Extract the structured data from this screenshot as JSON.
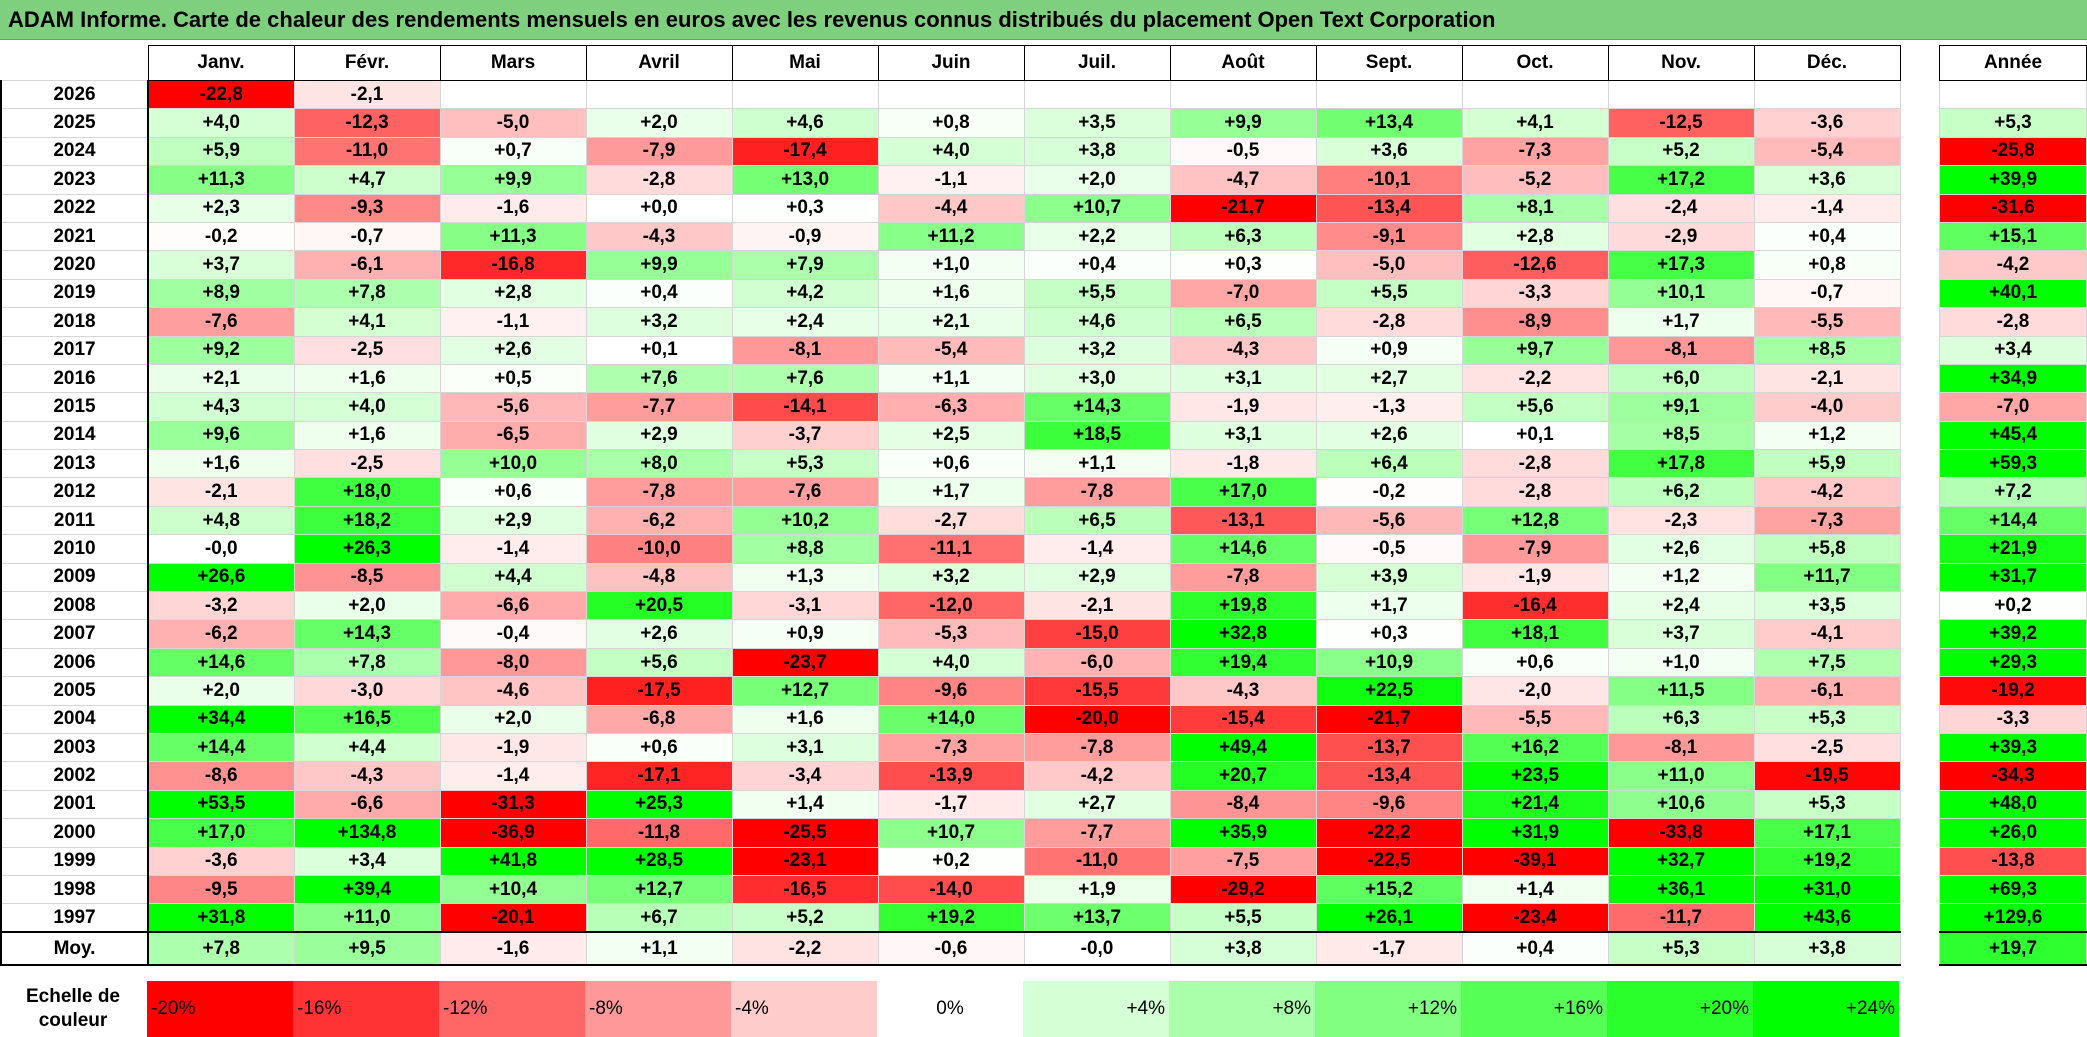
{
  "title": "ADAM Informe. Carte de chaleur des rendements mensuels en euros avec les revenus connus distribués du placement Open Text Corporation",
  "months": [
    "Janv.",
    "Févr.",
    "Mars",
    "Avril",
    "Mai",
    "Juin",
    "Juil.",
    "Août",
    "Sept.",
    "Oct.",
    "Nov.",
    "Déc."
  ],
  "year_header": "Année",
  "avg_label": "Moy.",
  "scale_label": "Echelle de couleur",
  "colors": {
    "title_bg": "#7ed07e",
    "negative_max": "#ff0000",
    "positive_max": "#00ff00",
    "neutral": "#ffffff"
  },
  "chart_data": {
    "type": "heatmap",
    "title": "ADAM Informe. Carte de chaleur des rendements mensuels en euros avec les revenus connus distribués du placement Open Text Corporation",
    "columns": [
      "Janv.",
      "Févr.",
      "Mars",
      "Avril",
      "Mai",
      "Juin",
      "Juil.",
      "Août",
      "Sept.",
      "Oct.",
      "Nov.",
      "Déc.",
      "Année"
    ],
    "rows": [
      {
        "year": "2026",
        "values": [
          "-22,8",
          "-2,1",
          "",
          "",
          "",
          "",
          "",
          "",
          "",
          "",
          "",
          "",
          ""
        ]
      },
      {
        "year": "2025",
        "values": [
          "+4,0",
          "-12,3",
          "-5,0",
          "+2,0",
          "+4,6",
          "+0,8",
          "+3,5",
          "+9,9",
          "+13,4",
          "+4,1",
          "-12,5",
          "-3,6",
          "+5,3"
        ]
      },
      {
        "year": "2024",
        "values": [
          "+5,9",
          "-11,0",
          "+0,7",
          "-7,9",
          "-17,4",
          "+4,0",
          "+3,8",
          "-0,5",
          "+3,6",
          "-7,3",
          "+5,2",
          "-5,4",
          "-25,8"
        ]
      },
      {
        "year": "2023",
        "values": [
          "+11,3",
          "+4,7",
          "+9,9",
          "-2,8",
          "+13,0",
          "-1,1",
          "+2,0",
          "-4,7",
          "-10,1",
          "-5,2",
          "+17,2",
          "+3,6",
          "+39,9"
        ]
      },
      {
        "year": "2022",
        "values": [
          "+2,3",
          "-9,3",
          "-1,6",
          "+0,0",
          "+0,3",
          "-4,4",
          "+10,7",
          "-21,7",
          "-13,4",
          "+8,1",
          "-2,4",
          "-1,4",
          "-31,6"
        ]
      },
      {
        "year": "2021",
        "values": [
          "-0,2",
          "-0,7",
          "+11,3",
          "-4,3",
          "-0,9",
          "+11,2",
          "+2,2",
          "+6,3",
          "-9,1",
          "+2,8",
          "-2,9",
          "+0,4",
          "+15,1"
        ]
      },
      {
        "year": "2020",
        "values": [
          "+3,7",
          "-6,1",
          "-16,8",
          "+9,9",
          "+7,9",
          "+1,0",
          "+0,4",
          "+0,3",
          "-5,0",
          "-12,6",
          "+17,3",
          "+0,8",
          "-4,2"
        ]
      },
      {
        "year": "2019",
        "values": [
          "+8,9",
          "+7,8",
          "+2,8",
          "+0,4",
          "+4,2",
          "+1,6",
          "+5,5",
          "-7,0",
          "+5,5",
          "-3,3",
          "+10,1",
          "-0,7",
          "+40,1"
        ]
      },
      {
        "year": "2018",
        "values": [
          "-7,6",
          "+4,1",
          "-1,1",
          "+3,2",
          "+2,4",
          "+2,1",
          "+4,6",
          "+6,5",
          "-2,8",
          "-8,9",
          "+1,7",
          "-5,5",
          "-2,8"
        ]
      },
      {
        "year": "2017",
        "values": [
          "+9,2",
          "-2,5",
          "+2,6",
          "+0,1",
          "-8,1",
          "-5,4",
          "+3,2",
          "-4,3",
          "+0,9",
          "+9,7",
          "-8,1",
          "+8,5",
          "+3,4"
        ]
      },
      {
        "year": "2016",
        "values": [
          "+2,1",
          "+1,6",
          "+0,5",
          "+7,6",
          "+7,6",
          "+1,1",
          "+3,0",
          "+3,1",
          "+2,7",
          "-2,2",
          "+6,0",
          "-2,1",
          "+34,9"
        ]
      },
      {
        "year": "2015",
        "values": [
          "+4,3",
          "+4,0",
          "-5,6",
          "-7,7",
          "-14,1",
          "-6,3",
          "+14,3",
          "-1,9",
          "-1,3",
          "+5,6",
          "+9,1",
          "-4,0",
          "-7,0"
        ]
      },
      {
        "year": "2014",
        "values": [
          "+9,6",
          "+1,6",
          "-6,5",
          "+2,9",
          "-3,7",
          "+2,5",
          "+18,5",
          "+3,1",
          "+2,6",
          "+0,1",
          "+8,5",
          "+1,2",
          "+45,4"
        ]
      },
      {
        "year": "2013",
        "values": [
          "+1,6",
          "-2,5",
          "+10,0",
          "+8,0",
          "+5,3",
          "+0,6",
          "+1,1",
          "-1,8",
          "+6,4",
          "-2,8",
          "+17,8",
          "+5,9",
          "+59,3"
        ]
      },
      {
        "year": "2012",
        "values": [
          "-2,1",
          "+18,0",
          "+0,6",
          "-7,8",
          "-7,6",
          "+1,7",
          "-7,8",
          "+17,0",
          "-0,2",
          "-2,8",
          "+6,2",
          "-4,2",
          "+7,2"
        ]
      },
      {
        "year": "2011",
        "values": [
          "+4,8",
          "+18,2",
          "+2,9",
          "-6,2",
          "+10,2",
          "-2,7",
          "+6,5",
          "-13,1",
          "-5,6",
          "+12,8",
          "-2,3",
          "-7,3",
          "+14,4"
        ]
      },
      {
        "year": "2010",
        "values": [
          "-0,0",
          "+26,3",
          "-1,4",
          "-10,0",
          "+8,8",
          "-11,1",
          "-1,4",
          "+14,6",
          "-0,5",
          "-7,9",
          "+2,6",
          "+5,8",
          "+21,9"
        ]
      },
      {
        "year": "2009",
        "values": [
          "+26,6",
          "-8,5",
          "+4,4",
          "-4,8",
          "+1,3",
          "+3,2",
          "+2,9",
          "-7,8",
          "+3,9",
          "-1,9",
          "+1,2",
          "+11,7",
          "+31,7"
        ]
      },
      {
        "year": "2008",
        "values": [
          "-3,2",
          "+2,0",
          "-6,6",
          "+20,5",
          "-3,1",
          "-12,0",
          "-2,1",
          "+19,8",
          "+1,7",
          "-16,4",
          "+2,4",
          "+3,5",
          "+0,2"
        ]
      },
      {
        "year": "2007",
        "values": [
          "-6,2",
          "+14,3",
          "-0,4",
          "+2,6",
          "+0,9",
          "-5,3",
          "-15,0",
          "+32,8",
          "+0,3",
          "+18,1",
          "+3,7",
          "-4,1",
          "+39,2"
        ]
      },
      {
        "year": "2006",
        "values": [
          "+14,6",
          "+7,8",
          "-8,0",
          "+5,6",
          "-23,7",
          "+4,0",
          "-6,0",
          "+19,4",
          "+10,9",
          "+0,6",
          "+1,0",
          "+7,5",
          "+29,3"
        ]
      },
      {
        "year": "2005",
        "values": [
          "+2,0",
          "-3,0",
          "-4,6",
          "-17,5",
          "+12,7",
          "-9,6",
          "-15,5",
          "-4,3",
          "+22,5",
          "-2,0",
          "+11,5",
          "-6,1",
          "-19,2"
        ]
      },
      {
        "year": "2004",
        "values": [
          "+34,4",
          "+16,5",
          "+2,0",
          "-6,8",
          "+1,6",
          "+14,0",
          "-20,0",
          "-15,4",
          "-21,7",
          "-5,5",
          "+6,3",
          "+5,3",
          "-3,3"
        ]
      },
      {
        "year": "2003",
        "values": [
          "+14,4",
          "+4,4",
          "-1,9",
          "+0,6",
          "+3,1",
          "-7,3",
          "-7,8",
          "+49,4",
          "-13,7",
          "+16,2",
          "-8,1",
          "-2,5",
          "+39,3"
        ]
      },
      {
        "year": "2002",
        "values": [
          "-8,6",
          "-4,3",
          "-1,4",
          "-17,1",
          "-3,4",
          "-13,9",
          "-4,2",
          "+20,7",
          "-13,4",
          "+23,5",
          "+11,0",
          "-19,5",
          "-34,3"
        ]
      },
      {
        "year": "2001",
        "values": [
          "+53,5",
          "-6,6",
          "-31,3",
          "+25,3",
          "+1,4",
          "-1,7",
          "+2,7",
          "-8,4",
          "-9,6",
          "+21,4",
          "+10,6",
          "+5,3",
          "+48,0"
        ]
      },
      {
        "year": "2000",
        "values": [
          "+17,0",
          "+134,8",
          "-36,9",
          "-11,8",
          "-25,5",
          "+10,7",
          "-7,7",
          "+35,9",
          "-22,2",
          "+31,9",
          "-33,8",
          "+17,1",
          "+26,0"
        ]
      },
      {
        "year": "1999",
        "values": [
          "-3,6",
          "+3,4",
          "+41,8",
          "+28,5",
          "-23,1",
          "+0,2",
          "-11,0",
          "-7,5",
          "-22,5",
          "-39,1",
          "+32,7",
          "+19,2",
          "-13,8"
        ]
      },
      {
        "year": "1998",
        "values": [
          "-9,5",
          "+39,4",
          "+10,4",
          "+12,7",
          "-16,5",
          "-14,0",
          "+1,9",
          "-29,2",
          "+15,2",
          "+1,4",
          "+36,1",
          "+31,0",
          "+69,3"
        ]
      },
      {
        "year": "1997",
        "values": [
          "+31,8",
          "+11,0",
          "-20,1",
          "+6,7",
          "+5,2",
          "+19,2",
          "+13,7",
          "+5,5",
          "+26,1",
          "-23,4",
          "-11,7",
          "+43,6",
          "+129,6"
        ]
      }
    ],
    "average": [
      "+7,8",
      "+9,5",
      "-1,6",
      "+1,1",
      "-2,2",
      "-0,6",
      "-0,0",
      "+3,8",
      "-1,7",
      "+0,4",
      "+5,3",
      "+3,8",
      "+19,7"
    ],
    "scale": [
      "-20%",
      "-16%",
      "-12%",
      "-8%",
      "-4%",
      "0%",
      "+4%",
      "+8%",
      "+12%",
      "+16%",
      "+20%",
      "+24%"
    ],
    "scale_range": [
      -20,
      24
    ]
  }
}
